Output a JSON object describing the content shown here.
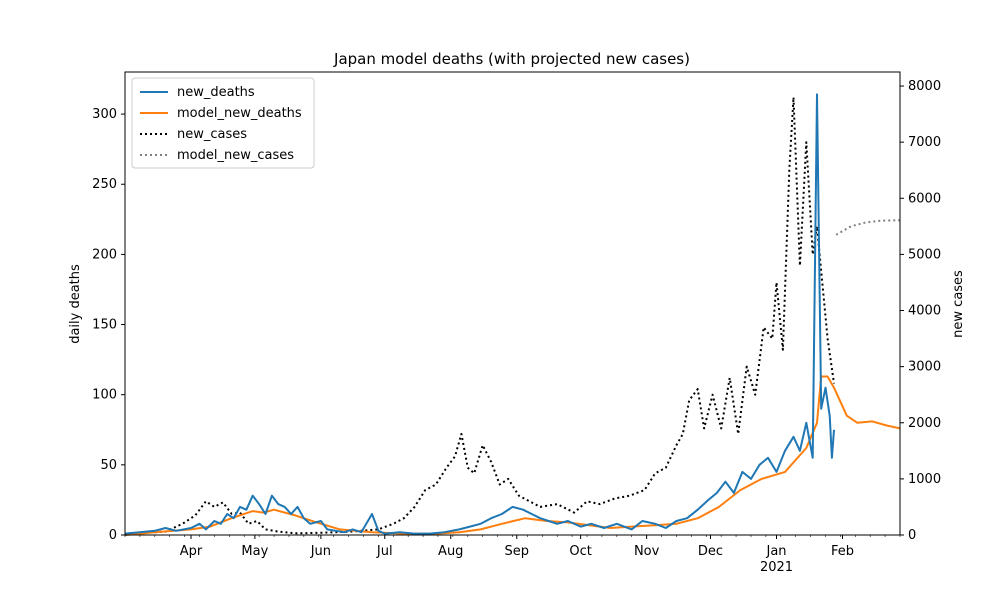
{
  "chart_data": {
    "type": "line",
    "title": "Japan model deaths (with projected new cases)",
    "ylabel_left": "daily deaths",
    "ylabel_right": "new cases",
    "ylim_left": [
      0,
      330
    ],
    "ylim_right": [
      0,
      8250
    ],
    "yticks_left": [
      0,
      50,
      100,
      150,
      200,
      250,
      300
    ],
    "yticks_right": [
      0,
      1000,
      2000,
      3000,
      4000,
      5000,
      6000,
      7000,
      8000
    ],
    "x_start": "2020-03-01",
    "x_end": "2021-02-28",
    "x_ticks": [
      {
        "date": "2020-04-01",
        "label": "Apr"
      },
      {
        "date": "2020-05-01",
        "label": "May"
      },
      {
        "date": "2020-06-01",
        "label": "Jun"
      },
      {
        "date": "2020-07-01",
        "label": "Jul"
      },
      {
        "date": "2020-08-01",
        "label": "Aug"
      },
      {
        "date": "2020-09-01",
        "label": "Sep"
      },
      {
        "date": "2020-10-01",
        "label": "Oct"
      },
      {
        "date": "2020-11-01",
        "label": "Nov"
      },
      {
        "date": "2020-12-01",
        "label": "Dec"
      },
      {
        "date": "2021-01-01",
        "label": "Jan"
      },
      {
        "date": "2021-02-01",
        "label": "Feb"
      }
    ],
    "year_label": {
      "date": "2021-01-01",
      "label": "2021"
    },
    "grid": false,
    "legend_position": "top-left",
    "series": [
      {
        "name": "new_deaths",
        "axis": "left",
        "color": "#1f77b4",
        "style": "solid",
        "points": [
          [
            "2020-03-01",
            1
          ],
          [
            "2020-03-08",
            2
          ],
          [
            "2020-03-15",
            3
          ],
          [
            "2020-03-20",
            5
          ],
          [
            "2020-03-25",
            3
          ],
          [
            "2020-04-01",
            5
          ],
          [
            "2020-04-05",
            8
          ],
          [
            "2020-04-08",
            4
          ],
          [
            "2020-04-12",
            10
          ],
          [
            "2020-04-15",
            8
          ],
          [
            "2020-04-18",
            15
          ],
          [
            "2020-04-21",
            12
          ],
          [
            "2020-04-24",
            20
          ],
          [
            "2020-04-27",
            18
          ],
          [
            "2020-04-30",
            28
          ],
          [
            "2020-05-03",
            22
          ],
          [
            "2020-05-06",
            15
          ],
          [
            "2020-05-09",
            28
          ],
          [
            "2020-05-12",
            22
          ],
          [
            "2020-05-15",
            20
          ],
          [
            "2020-05-18",
            15
          ],
          [
            "2020-05-21",
            20
          ],
          [
            "2020-05-24",
            12
          ],
          [
            "2020-05-27",
            8
          ],
          [
            "2020-06-01",
            10
          ],
          [
            "2020-06-04",
            4
          ],
          [
            "2020-06-08",
            3
          ],
          [
            "2020-06-12",
            2
          ],
          [
            "2020-06-16",
            4
          ],
          [
            "2020-06-20",
            2
          ],
          [
            "2020-06-25",
            15
          ],
          [
            "2020-06-28",
            3
          ],
          [
            "2020-07-01",
            1
          ],
          [
            "2020-07-08",
            2
          ],
          [
            "2020-07-15",
            1
          ],
          [
            "2020-07-22",
            1
          ],
          [
            "2020-07-29",
            2
          ],
          [
            "2020-08-05",
            4
          ],
          [
            "2020-08-10",
            6
          ],
          [
            "2020-08-15",
            8
          ],
          [
            "2020-08-20",
            12
          ],
          [
            "2020-08-25",
            15
          ],
          [
            "2020-08-30",
            20
          ],
          [
            "2020-09-04",
            18
          ],
          [
            "2020-09-08",
            15
          ],
          [
            "2020-09-12",
            12
          ],
          [
            "2020-09-16",
            10
          ],
          [
            "2020-09-20",
            8
          ],
          [
            "2020-09-25",
            10
          ],
          [
            "2020-10-01",
            6
          ],
          [
            "2020-10-06",
            8
          ],
          [
            "2020-10-12",
            5
          ],
          [
            "2020-10-18",
            8
          ],
          [
            "2020-10-25",
            4
          ],
          [
            "2020-10-30",
            10
          ],
          [
            "2020-11-05",
            8
          ],
          [
            "2020-11-10",
            5
          ],
          [
            "2020-11-15",
            10
          ],
          [
            "2020-11-20",
            12
          ],
          [
            "2020-11-25",
            18
          ],
          [
            "2020-11-30",
            25
          ],
          [
            "2020-12-04",
            30
          ],
          [
            "2020-12-08",
            38
          ],
          [
            "2020-12-12",
            30
          ],
          [
            "2020-12-16",
            45
          ],
          [
            "2020-12-20",
            40
          ],
          [
            "2020-12-24",
            50
          ],
          [
            "2020-12-28",
            55
          ],
          [
            "2021-01-01",
            45
          ],
          [
            "2021-01-05",
            60
          ],
          [
            "2021-01-09",
            70
          ],
          [
            "2021-01-12",
            60
          ],
          [
            "2021-01-15",
            80
          ],
          [
            "2021-01-18",
            55
          ],
          [
            "2021-01-20",
            314
          ],
          [
            "2021-01-22",
            90
          ],
          [
            "2021-01-24",
            105
          ],
          [
            "2021-01-26",
            85
          ],
          [
            "2021-01-27",
            55
          ],
          [
            "2021-01-28",
            75
          ]
        ]
      },
      {
        "name": "model_new_deaths",
        "axis": "left",
        "color": "#ff7f0e",
        "style": "solid",
        "points": [
          [
            "2020-03-01",
            0
          ],
          [
            "2020-03-15",
            2
          ],
          [
            "2020-04-01",
            4
          ],
          [
            "2020-04-10",
            6
          ],
          [
            "2020-04-20",
            12
          ],
          [
            "2020-04-30",
            17
          ],
          [
            "2020-05-05",
            16
          ],
          [
            "2020-05-10",
            18
          ],
          [
            "2020-05-20",
            14
          ],
          [
            "2020-05-30",
            9
          ],
          [
            "2020-06-10",
            4
          ],
          [
            "2020-06-25",
            2
          ],
          [
            "2020-07-10",
            1
          ],
          [
            "2020-07-25",
            1
          ],
          [
            "2020-08-05",
            2
          ],
          [
            "2020-08-15",
            4
          ],
          [
            "2020-08-25",
            8
          ],
          [
            "2020-09-05",
            12
          ],
          [
            "2020-09-15",
            10
          ],
          [
            "2020-09-25",
            9
          ],
          [
            "2020-10-05",
            7
          ],
          [
            "2020-10-15",
            5
          ],
          [
            "2020-10-25",
            6
          ],
          [
            "2020-11-05",
            7
          ],
          [
            "2020-11-15",
            8
          ],
          [
            "2020-11-25",
            12
          ],
          [
            "2020-12-05",
            20
          ],
          [
            "2020-12-15",
            32
          ],
          [
            "2020-12-25",
            40
          ],
          [
            "2021-01-05",
            45
          ],
          [
            "2021-01-15",
            62
          ],
          [
            "2021-01-20",
            80
          ],
          [
            "2021-01-22",
            113
          ],
          [
            "2021-01-25",
            113
          ],
          [
            "2021-01-28",
            105
          ],
          [
            "2021-02-03",
            85
          ],
          [
            "2021-02-08",
            80
          ],
          [
            "2021-02-15",
            81
          ],
          [
            "2021-02-22",
            78
          ],
          [
            "2021-02-28",
            76
          ]
        ]
      },
      {
        "name": "new_cases",
        "axis": "right",
        "color": "#000000",
        "style": "dotted",
        "points": [
          [
            "2020-03-01",
            0
          ],
          [
            "2020-03-10",
            40
          ],
          [
            "2020-03-20",
            60
          ],
          [
            "2020-03-28",
            200
          ],
          [
            "2020-04-03",
            350
          ],
          [
            "2020-04-08",
            600
          ],
          [
            "2020-04-12",
            500
          ],
          [
            "2020-04-16",
            580
          ],
          [
            "2020-04-20",
            380
          ],
          [
            "2020-04-24",
            400
          ],
          [
            "2020-04-28",
            200
          ],
          [
            "2020-05-02",
            250
          ],
          [
            "2020-05-06",
            100
          ],
          [
            "2020-05-12",
            60
          ],
          [
            "2020-05-20",
            30
          ],
          [
            "2020-06-01",
            40
          ],
          [
            "2020-06-15",
            60
          ],
          [
            "2020-06-28",
            100
          ],
          [
            "2020-07-05",
            200
          ],
          [
            "2020-07-10",
            300
          ],
          [
            "2020-07-15",
            500
          ],
          [
            "2020-07-20",
            800
          ],
          [
            "2020-07-25",
            900
          ],
          [
            "2020-07-30",
            1200
          ],
          [
            "2020-08-03",
            1400
          ],
          [
            "2020-08-06",
            1800
          ],
          [
            "2020-08-09",
            1200
          ],
          [
            "2020-08-12",
            1100
          ],
          [
            "2020-08-16",
            1600
          ],
          [
            "2020-08-20",
            1300
          ],
          [
            "2020-08-24",
            900
          ],
          [
            "2020-08-28",
            1000
          ],
          [
            "2020-09-02",
            700
          ],
          [
            "2020-09-07",
            600
          ],
          [
            "2020-09-12",
            500
          ],
          [
            "2020-09-20",
            550
          ],
          [
            "2020-09-28",
            400
          ],
          [
            "2020-10-04",
            600
          ],
          [
            "2020-10-10",
            550
          ],
          [
            "2020-10-17",
            650
          ],
          [
            "2020-10-24",
            700
          ],
          [
            "2020-10-31",
            800
          ],
          [
            "2020-11-05",
            1100
          ],
          [
            "2020-11-10",
            1200
          ],
          [
            "2020-11-15",
            1600
          ],
          [
            "2020-11-18",
            1800
          ],
          [
            "2020-11-21",
            2400
          ],
          [
            "2020-11-25",
            2600
          ],
          [
            "2020-11-28",
            1900
          ],
          [
            "2020-12-02",
            2500
          ],
          [
            "2020-12-06",
            1900
          ],
          [
            "2020-12-10",
            2800
          ],
          [
            "2020-12-14",
            1800
          ],
          [
            "2020-12-18",
            3000
          ],
          [
            "2020-12-22",
            2500
          ],
          [
            "2020-12-26",
            3700
          ],
          [
            "2020-12-30",
            3500
          ],
          [
            "2021-01-01",
            4500
          ],
          [
            "2021-01-04",
            3300
          ],
          [
            "2021-01-07",
            6500
          ],
          [
            "2021-01-09",
            7800
          ],
          [
            "2021-01-12",
            4800
          ],
          [
            "2021-01-15",
            7000
          ],
          [
            "2021-01-18",
            5000
          ],
          [
            "2021-01-20",
            5500
          ],
          [
            "2021-01-22",
            4700
          ],
          [
            "2021-01-25",
            3500
          ],
          [
            "2021-01-28",
            2700
          ]
        ]
      },
      {
        "name": "model_new_cases",
        "axis": "right",
        "color": "#808080",
        "style": "dotted",
        "points": [
          [
            "2021-01-29",
            5350
          ],
          [
            "2021-02-05",
            5500
          ],
          [
            "2021-02-12",
            5570
          ],
          [
            "2021-02-19",
            5600
          ],
          [
            "2021-02-28",
            5610
          ]
        ]
      }
    ]
  }
}
